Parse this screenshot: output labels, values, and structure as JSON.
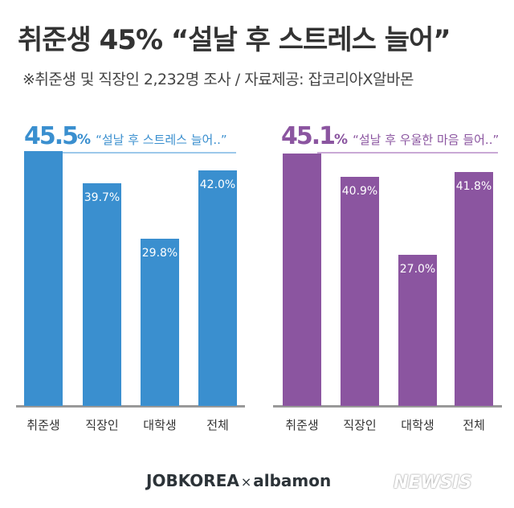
{
  "title": "취준생 45% “설날 후 스트레스 늘어”",
  "subtitle": "※취준생 및 직장인 2,232명 조사  / 자료제공: 잡코리아X알바몬",
  "chart_data": [
    {
      "type": "bar",
      "headline_value": "45.5",
      "headline_unit": "%",
      "headline_quote": "“설날 후 스트레스 늘어..”",
      "color": "#3a8fcf",
      "line_color": "#9cc8ea",
      "categories": [
        "취준생",
        "직장인",
        "대학생",
        "전체"
      ],
      "values": [
        45.5,
        39.7,
        29.8,
        42.0
      ],
      "labels": [
        "",
        "39.7%",
        "29.8%",
        "42.0%"
      ],
      "ylim": [
        0,
        45.5
      ]
    },
    {
      "type": "bar",
      "headline_value": "45.1",
      "headline_unit": "%",
      "headline_quote": "“설날 후 우울한 마음 들어..”",
      "color": "#8b55a0",
      "line_color": "#c9a9d6",
      "categories": [
        "취준생",
        "직장인",
        "대학생",
        "전체"
      ],
      "values": [
        45.1,
        40.9,
        27.0,
        41.8
      ],
      "labels": [
        "",
        "40.9%",
        "27.0%",
        "41.8%"
      ],
      "ylim": [
        0,
        45.1
      ]
    }
  ],
  "footer": {
    "brand1": "JOBKOREA",
    "times": "×",
    "brand2": "albamon",
    "watermark": "NEWSIS"
  }
}
